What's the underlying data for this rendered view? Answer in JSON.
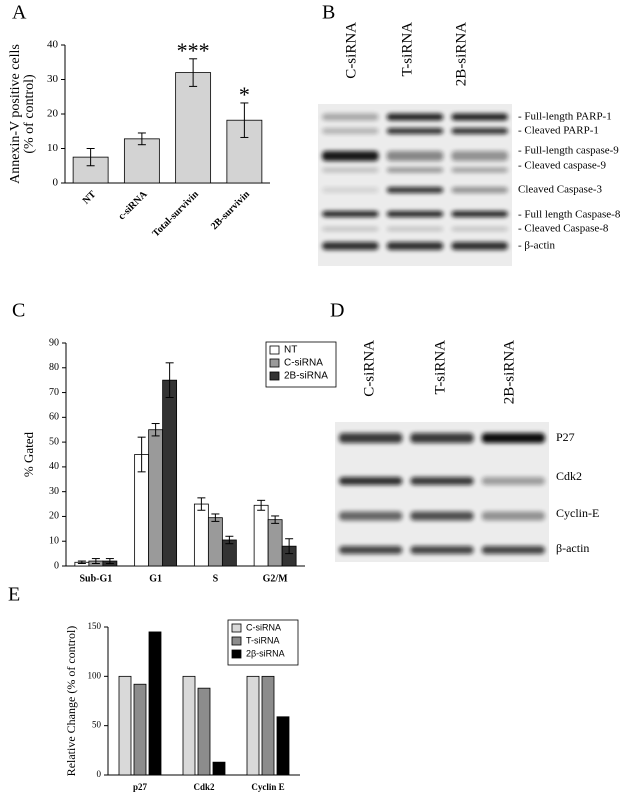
{
  "chart_data": [
    {
      "type": "bar",
      "panel": "A",
      "y_label": [
        "Annexin-V positive cells",
        "(% of control)"
      ],
      "categories": [
        "NT",
        "c-siRNA",
        "Total-survivin",
        "2B-survivin"
      ],
      "values": [
        7.5,
        12.8,
        32,
        18.2
      ],
      "errors": [
        2.5,
        1.7,
        4,
        5
      ],
      "annotations": [
        null,
        null,
        "***",
        "*"
      ],
      "color": "#d3d3d3",
      "ylim": [
        0,
        40
      ],
      "yticks": [
        0,
        10,
        20,
        30,
        40
      ]
    },
    {
      "type": "bar",
      "panel": "C",
      "y_label": "% Gated",
      "categories": [
        "Sub-G1",
        "G1",
        "S",
        "G2/M"
      ],
      "series": [
        {
          "name": "NT",
          "color": "#ffffff",
          "values": [
            1.5,
            45,
            25,
            24.5
          ],
          "errors": [
            0.5,
            7,
            2.5,
            2
          ]
        },
        {
          "name": "C-siRNA",
          "color": "#9a9a9a",
          "values": [
            2,
            55,
            19.5,
            18.7
          ],
          "errors": [
            1,
            2.5,
            1.5,
            1.5
          ]
        },
        {
          "name": "2B-siRNA",
          "color": "#333333",
          "values": [
            2,
            75,
            10.5,
            8
          ],
          "errors": [
            1,
            7,
            1.5,
            3
          ]
        }
      ],
      "ylim": [
        0,
        90
      ],
      "yticks": [
        0,
        10,
        20,
        30,
        40,
        50,
        60,
        70,
        80,
        90
      ]
    },
    {
      "type": "bar",
      "panel": "E",
      "y_label": "Relative Change (% of control)",
      "categories": [
        "p27",
        "Cdk2",
        "Cyclin E"
      ],
      "series": [
        {
          "name": "C-siRNA",
          "color": "#d9d9d9",
          "values": [
            100,
            100,
            100
          ]
        },
        {
          "name": "T-siRNA",
          "color": "#8c8c8c",
          "values": [
            92,
            88,
            100
          ]
        },
        {
          "name": "2β-siRNA",
          "color": "#000000",
          "values": [
            145,
            13,
            59
          ]
        }
      ],
      "ylim": [
        0,
        150
      ],
      "yticks": [
        0,
        50,
        100,
        150
      ]
    }
  ],
  "blots": [
    {
      "panel": "B",
      "lanes": [
        "C-siRNA",
        "T-siRNA",
        "2B-siRNA"
      ],
      "bands": [
        "- Full-length PARP-1",
        "- Cleaved PARP-1",
        "- Full-length caspase-9",
        "- Cleaved caspase-9",
        "Cleaved Caspase-3",
        "- Full length Caspase-8",
        "- Cleaved Caspase-8",
        "- β-actin"
      ]
    },
    {
      "panel": "D",
      "lanes": [
        "C-siRNA",
        "T-siRNA",
        "2B-siRNA"
      ],
      "bands": [
        "P27",
        "Cdk2",
        "Cyclin-E",
        "β-actin"
      ]
    }
  ]
}
